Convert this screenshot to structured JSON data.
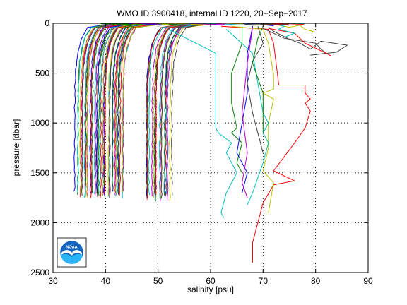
{
  "chart_data": {
    "type": "line",
    "title": "WMO ID 3900418, internal ID 1220, 20−Sep−2017",
    "xlabel": "salinity [psu]",
    "ylabel": "pressure [dbar]",
    "xlim": [
      30,
      90
    ],
    "ylim": [
      0,
      2500
    ],
    "y_reversed": true,
    "grid": true,
    "grid_style": "dotted",
    "xticks": [
      "30",
      "40",
      "50",
      "60",
      "70",
      "80",
      "90"
    ],
    "yticks": [
      "0",
      "500",
      "1000",
      "1500",
      "2000",
      "2500"
    ],
    "palette": [
      "#0000ff",
      "#008000",
      "#ff0000",
      "#00bfbf",
      "#bf00bf",
      "#bfbf00",
      "#404040"
    ],
    "profile_groups": [
      {
        "name": "",
        "x_start": 34.5,
        "x_end": 43.5,
        "count": 48,
        "surface_offset": 3.2,
        "max_pressure": 1760,
        "spread": 0.8
      },
      {
        "name": "",
        "x_start": 47.5,
        "x_end": 52.5,
        "count": 22,
        "surface_offset": 3.4,
        "max_pressure": 1790,
        "spread": 0.6
      }
    ],
    "outlier_series": [
      {
        "color": "#ff0000",
        "points": [
          [
            62,
            30
          ],
          [
            71,
            60
          ],
          [
            72,
            200
          ],
          [
            73,
            620
          ],
          [
            78,
            620
          ],
          [
            78,
            700
          ],
          [
            79,
            760
          ],
          [
            78,
            800
          ],
          [
            79,
            880
          ],
          [
            78,
            1050
          ],
          [
            76,
            1200
          ],
          [
            72,
            1480
          ],
          [
            76,
            1580
          ],
          [
            72,
            1620
          ],
          [
            70,
            1800
          ],
          [
            69,
            2000
          ],
          [
            68,
            2200
          ],
          [
            68,
            2400
          ]
        ]
      },
      {
        "color": "#bfbf00",
        "points": [
          [
            64,
            30
          ],
          [
            70,
            60
          ],
          [
            71,
            200
          ],
          [
            72,
            520
          ],
          [
            72,
            660
          ],
          [
            70,
            700
          ],
          [
            72,
            760
          ],
          [
            71,
            1000
          ],
          [
            71,
            1250
          ],
          [
            70,
            1480
          ],
          [
            72,
            1600
          ],
          [
            71,
            1900
          ]
        ]
      },
      {
        "color": "#00bfbf",
        "points": [
          [
            52,
            60
          ],
          [
            61,
            300
          ],
          [
            61,
            500
          ],
          [
            61,
            1050
          ],
          [
            61.5,
            1100
          ],
          [
            64,
            1200
          ],
          [
            63,
            1300
          ],
          [
            65,
            1500
          ],
          [
            63,
            1700
          ],
          [
            62,
            1900
          ],
          [
            62.5,
            1950
          ]
        ]
      },
      {
        "color": "#00bfbf",
        "points": [
          [
            63,
            60
          ],
          [
            68,
            300
          ],
          [
            69,
            600
          ],
          [
            70,
            900
          ],
          [
            71,
            1000
          ],
          [
            70,
            1100
          ],
          [
            71,
            1200
          ],
          [
            70,
            1400
          ],
          [
            68,
            1700
          ],
          [
            67,
            1820
          ]
        ]
      },
      {
        "color": "#008000",
        "points": [
          [
            66,
            30
          ],
          [
            66,
            200
          ],
          [
            64,
            500
          ],
          [
            64,
            800
          ],
          [
            65,
            1050
          ],
          [
            64,
            1100
          ],
          [
            66,
            1200
          ],
          [
            65,
            1400
          ],
          [
            66,
            1500
          ]
        ]
      },
      {
        "color": "#0000ff",
        "points": [
          [
            68,
            30
          ],
          [
            67,
            300
          ],
          [
            67,
            700
          ],
          [
            66,
            1000
          ],
          [
            65,
            1300
          ],
          [
            67,
            1500
          ],
          [
            66,
            1700
          ]
        ]
      },
      {
        "color": "#bf00bf",
        "points": [
          [
            68,
            40
          ],
          [
            67,
            400
          ],
          [
            66,
            900
          ],
          [
            67,
            1300
          ],
          [
            66,
            1600
          ],
          [
            67,
            1750
          ]
        ]
      },
      {
        "color": "#404040",
        "points": [
          [
            69,
            30
          ],
          [
            70,
            200
          ],
          [
            68,
            380
          ],
          [
            67,
            600
          ],
          [
            68,
            900
          ],
          [
            69,
            1100
          ],
          [
            70,
            1300
          ]
        ]
      },
      {
        "color": "#008000",
        "points": [
          [
            70,
            30
          ],
          [
            69,
            150
          ],
          [
            68,
            400
          ],
          [
            70,
            700
          ],
          [
            70,
            1100
          ]
        ]
      },
      {
        "color": "#404040",
        "points": [
          [
            70,
            50
          ],
          [
            74,
            150
          ],
          [
            80,
            200
          ],
          [
            81,
            260
          ],
          [
            82,
            300
          ],
          [
            79,
            320
          ],
          [
            84,
            290
          ],
          [
            86,
            220
          ],
          [
            81,
            180
          ],
          [
            79,
            260
          ],
          [
            77,
            200
          ],
          [
            75,
            160
          ],
          [
            72,
            80
          ],
          [
            71,
            40
          ]
        ]
      },
      {
        "color": "#ff0000",
        "points": [
          [
            71,
            50
          ],
          [
            76,
            100
          ],
          [
            78,
            200
          ],
          [
            80,
            250
          ],
          [
            82,
            300
          ],
          [
            83,
            330
          ]
        ]
      },
      {
        "color": "#bfbf00",
        "points": [
          [
            72,
            10
          ],
          [
            75,
            40
          ],
          [
            77,
            20
          ],
          [
            78,
            60
          ],
          [
            80,
            90
          ]
        ]
      },
      {
        "color": "#00bfbf",
        "points": [
          [
            72,
            5
          ],
          [
            74,
            30
          ],
          [
            73,
            60
          ],
          [
            76,
            100
          ],
          [
            74,
            140
          ]
        ]
      },
      {
        "color": "#0000ff",
        "points": [
          [
            66,
            5
          ],
          [
            68,
            20
          ],
          [
            70,
            15
          ],
          [
            72,
            25
          ]
        ]
      }
    ]
  },
  "logo": {
    "name": "noaa-logo",
    "text": "NOAA",
    "colors": {
      "outer": "#1565c0",
      "inner": "#29b6f6",
      "bird": "#ffffff",
      "rim": "#ffffff"
    }
  }
}
